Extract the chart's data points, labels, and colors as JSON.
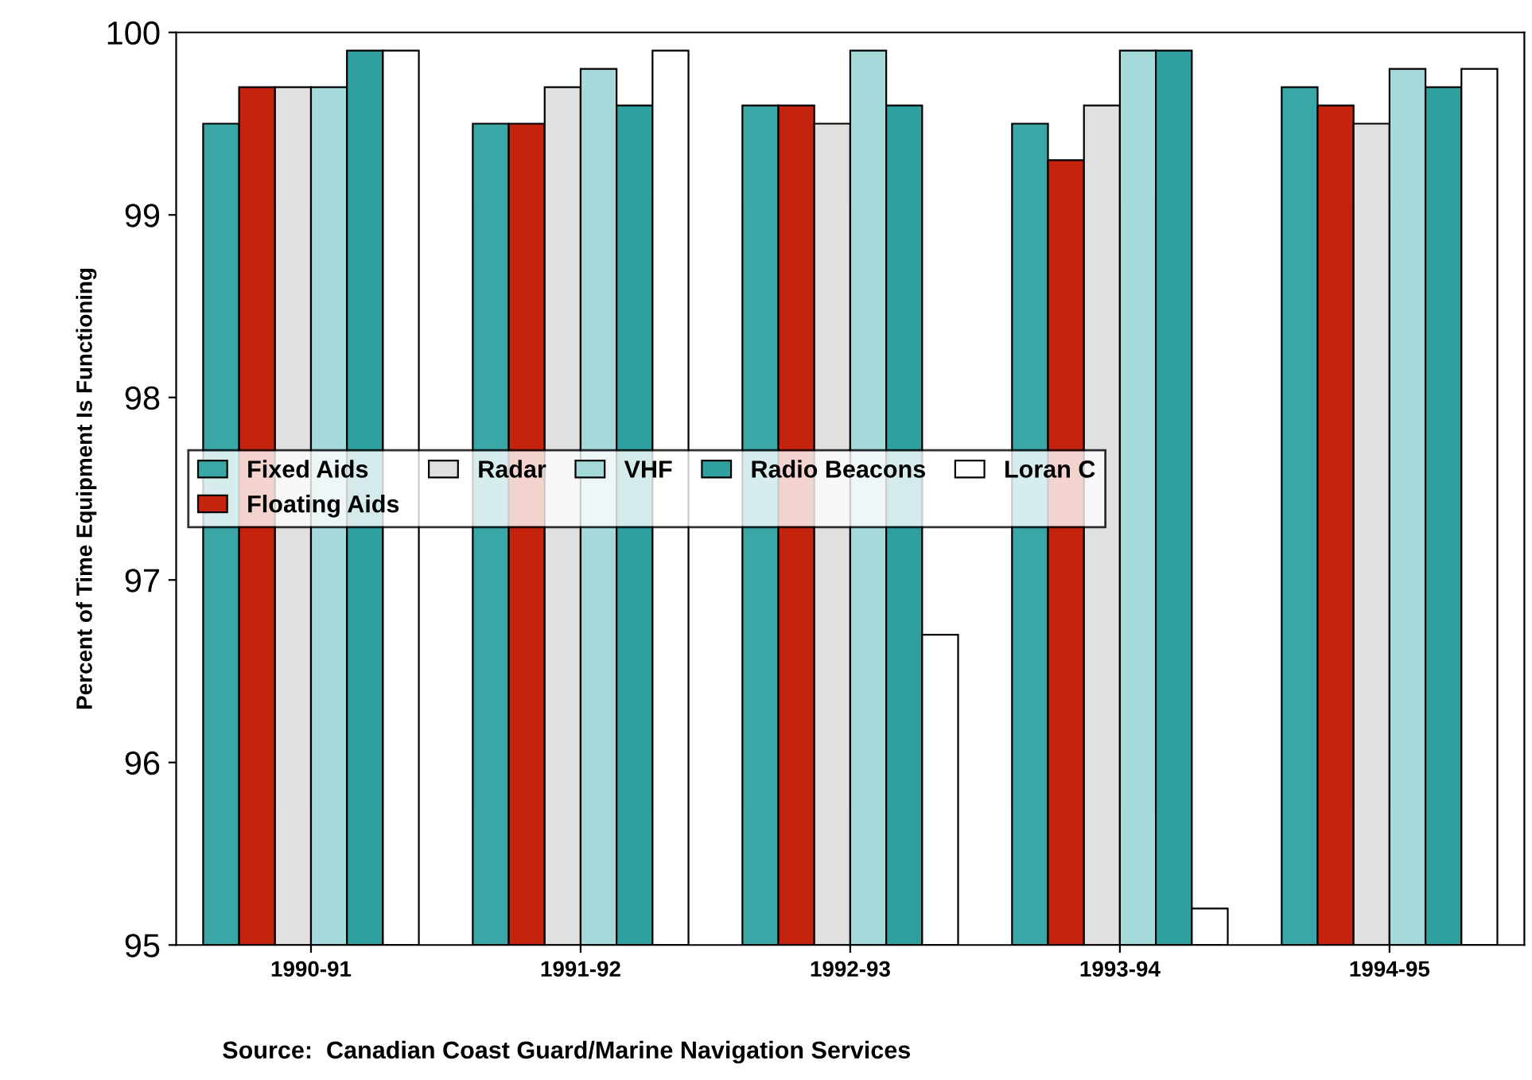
{
  "chart_data": {
    "type": "bar",
    "ylabel": "Percent of Time Equipment Is Functioning",
    "categories": [
      "1990-91",
      "1991-92",
      "1992-93",
      "1993-94",
      "1994-95"
    ],
    "series": [
      {
        "name": "Fixed Aids",
        "color": "#3aa6a6",
        "values": [
          99.5,
          99.5,
          99.6,
          99.5,
          99.7
        ]
      },
      {
        "name": "Floating Aids",
        "color": "#c4230e",
        "values": [
          99.7,
          99.5,
          99.6,
          99.3,
          99.6
        ]
      },
      {
        "name": "Radar",
        "color": "#e0e0e0",
        "values": [
          99.7,
          99.7,
          99.5,
          99.6,
          99.5
        ]
      },
      {
        "name": "VHF",
        "color": "#a6dada",
        "values": [
          99.7,
          99.8,
          99.9,
          99.9,
          99.8
        ]
      },
      {
        "name": "Radio Beacons",
        "color": "#2f9f9f",
        "values": [
          99.9,
          99.6,
          99.6,
          99.9,
          99.7
        ]
      },
      {
        "name": "Loran C",
        "color": "#ffffff",
        "values": [
          99.9,
          99.9,
          96.7,
          95.2,
          99.8
        ]
      }
    ],
    "ylim": [
      95,
      100
    ],
    "yticks": [
      95,
      96,
      97,
      98,
      99,
      100
    ],
    "grid": false,
    "legend": "center left",
    "annotations": [
      "Source:  Canadian Coast Guard/Marine Navigation Services"
    ]
  }
}
